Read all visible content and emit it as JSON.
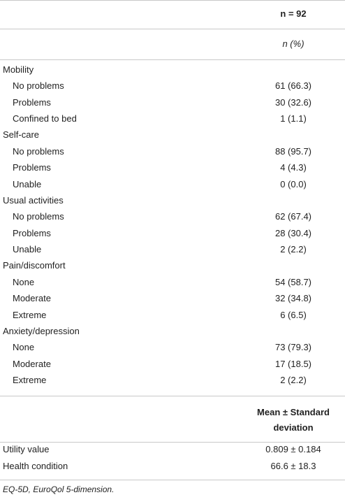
{
  "header": {
    "column": "n = 92",
    "subcolumn": "n (%)"
  },
  "sections": [
    {
      "label": "Mobility",
      "rows": [
        {
          "label": "No problems",
          "value": "61 (66.3)"
        },
        {
          "label": "Problems",
          "value": "30 (32.6)"
        },
        {
          "label": "Confined to bed",
          "value": "1 (1.1)"
        }
      ]
    },
    {
      "label": "Self-care",
      "rows": [
        {
          "label": "No problems",
          "value": "88 (95.7)"
        },
        {
          "label": "Problems",
          "value": "4 (4.3)"
        },
        {
          "label": "Unable",
          "value": "0 (0.0)"
        }
      ]
    },
    {
      "label": "Usual activities",
      "rows": [
        {
          "label": "No problems",
          "value": "62 (67.4)"
        },
        {
          "label": "Problems",
          "value": "28 (30.4)"
        },
        {
          "label": "Unable",
          "value": "2 (2.2)"
        }
      ]
    },
    {
      "label": "Pain/discomfort",
      "rows": [
        {
          "label": "None",
          "value": "54 (58.7)"
        },
        {
          "label": "Moderate",
          "value": "32 (34.8)"
        },
        {
          "label": "Extreme",
          "value": "6 (6.5)"
        }
      ]
    },
    {
      "label": "Anxiety/depression",
      "rows": [
        {
          "label": "None",
          "value": "73 (79.3)"
        },
        {
          "label": "Moderate",
          "value": "17 (18.5)"
        },
        {
          "label": "Extreme",
          "value": "2 (2.2)"
        }
      ]
    }
  ],
  "header2": {
    "line1": "Mean ± Standard",
    "line2": "deviation"
  },
  "rows2": [
    {
      "label": "Utility value",
      "value": "0.809 ± 0.184"
    },
    {
      "label": "Health condition",
      "value": "66.6 ± 18.3"
    }
  ],
  "footnote": "EQ-5D, EuroQol 5-dimension."
}
